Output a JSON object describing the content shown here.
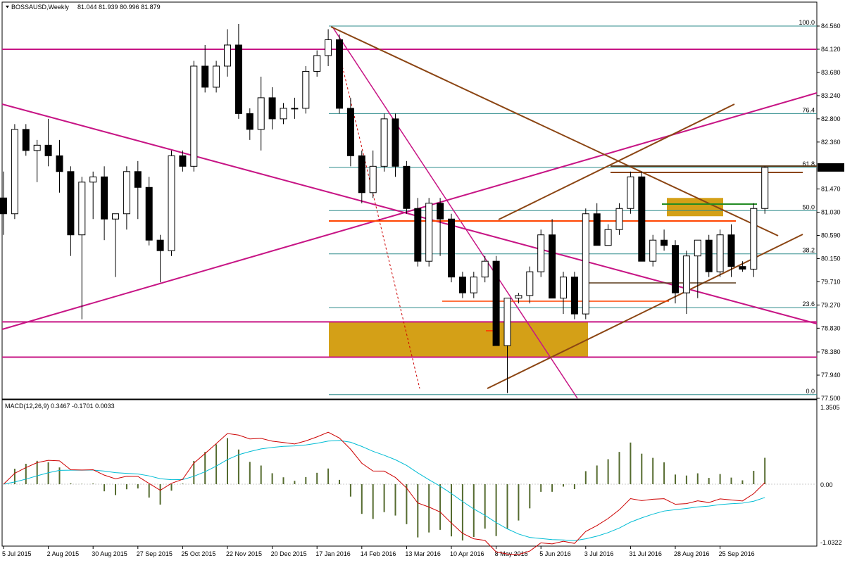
{
  "header": {
    "symbol": "BOSSAUSD,Weekly",
    "ohlc": "81.044 81.939 80.996 81.879"
  },
  "macd": {
    "label": "MACD(12,26,9) 0.3467 -0.1701 0.0033",
    "axis_top": "1.3505",
    "axis_zero": "0.00",
    "axis_bottom": "-1.0322"
  },
  "colors": {
    "bull_body": "#ffffff",
    "bear_body": "#000000",
    "magenta": "#c71585",
    "brown": "#8b4513",
    "fib": "#2e8b8b",
    "orange": "#ff4500",
    "green": "#228b22",
    "zone": "#d4a017",
    "hist": "#556b2f",
    "macd_signal": "#00bcd4",
    "macd_line": "#cc0000",
    "price_tag_bg": "#000000"
  },
  "chart_data": {
    "type": "candlestick",
    "price_axis": {
      "min": 77.5,
      "max": 84.56,
      "ticks": [
        "84.560",
        "84.120",
        "83.680",
        "83.240",
        "82.800",
        "82.360",
        "81.470",
        "81.030",
        "80.590",
        "80.150",
        "79.710",
        "79.270",
        "78.830",
        "78.380",
        "77.940",
        "77.500"
      ]
    },
    "last_price": "81.879",
    "x_labels": [
      "5 Jul 2015",
      "2 Aug 2015",
      "30 Aug 2015",
      "27 Sep 2015",
      "25 Oct 2015",
      "22 Nov 2015",
      "20 Dec 2015",
      "17 Jan 2016",
      "14 Feb 2016",
      "13 Mar 2016",
      "10 Apr 2016",
      "8 May 2016",
      "5 Jun 2016",
      "3 Jul 2016",
      "31 Jul 2016",
      "28 Aug 2016",
      "25 Sep 2016"
    ],
    "fib_levels": [
      {
        "label": "100.0",
        "price": 84.56
      },
      {
        "label": "76.4",
        "price": 82.9
      },
      {
        "label": "61.8",
        "price": 81.88
      },
      {
        "label": "50.0",
        "price": 81.06
      },
      {
        "label": "38.2",
        "price": 80.24
      },
      {
        "label": "23.6",
        "price": 79.22
      },
      {
        "label": "0.0",
        "price": 77.57
      }
    ],
    "horizontal_levels": [
      84.12,
      78.95,
      78.28
    ],
    "candles": [
      [
        81.3,
        81.8,
        80.6,
        81.0
      ],
      [
        81.0,
        82.7,
        80.9,
        82.6
      ],
      [
        82.6,
        82.7,
        82.1,
        82.2
      ],
      [
        82.2,
        82.4,
        81.6,
        82.3
      ],
      [
        82.3,
        82.8,
        81.9,
        82.1
      ],
      [
        82.1,
        82.4,
        81.4,
        81.8
      ],
      [
        81.8,
        81.9,
        80.2,
        80.6
      ],
      [
        80.6,
        81.7,
        79.0,
        81.6
      ],
      [
        81.6,
        81.8,
        80.9,
        81.7
      ],
      [
        81.7,
        81.9,
        80.5,
        80.9
      ],
      [
        80.9,
        81.0,
        79.8,
        81.0
      ],
      [
        81.0,
        81.9,
        80.7,
        81.8
      ],
      [
        81.8,
        82.0,
        80.9,
        81.5
      ],
      [
        81.5,
        81.7,
        80.4,
        80.5
      ],
      [
        80.5,
        80.6,
        79.7,
        80.3
      ],
      [
        80.3,
        82.2,
        80.2,
        82.1
      ],
      [
        82.1,
        82.2,
        81.8,
        81.9
      ],
      [
        81.9,
        83.9,
        81.8,
        83.8
      ],
      [
        83.8,
        84.2,
        83.3,
        83.4
      ],
      [
        83.4,
        83.9,
        83.3,
        83.8
      ],
      [
        83.8,
        84.5,
        83.6,
        84.2
      ],
      [
        84.2,
        84.6,
        82.8,
        82.9
      ],
      [
        82.9,
        83.0,
        82.4,
        82.6
      ],
      [
        82.6,
        83.6,
        82.2,
        83.2
      ],
      [
        83.2,
        83.4,
        82.6,
        82.8
      ],
      [
        82.8,
        83.1,
        82.7,
        83.0
      ],
      [
        83.0,
        83.2,
        82.8,
        83.0
      ],
      [
        83.0,
        83.8,
        82.9,
        83.7
      ],
      [
        83.7,
        84.1,
        83.6,
        84.0
      ],
      [
        84.0,
        84.5,
        83.8,
        84.3
      ],
      [
        84.3,
        84.4,
        82.9,
        83.0
      ],
      [
        83.0,
        83.2,
        81.9,
        82.1
      ],
      [
        82.1,
        82.2,
        81.2,
        81.4
      ],
      [
        81.4,
        82.2,
        81.3,
        81.9
      ],
      [
        81.9,
        82.9,
        81.8,
        82.8
      ],
      [
        82.8,
        82.9,
        81.7,
        81.9
      ],
      [
        81.9,
        82.0,
        81.0,
        81.1
      ],
      [
        81.1,
        81.3,
        80.0,
        80.1
      ],
      [
        80.1,
        81.3,
        80.0,
        81.2
      ],
      [
        81.2,
        81.3,
        80.2,
        80.9
      ],
      [
        80.9,
        81.0,
        79.7,
        79.8
      ],
      [
        79.8,
        79.9,
        79.4,
        79.5
      ],
      [
        79.5,
        79.9,
        79.4,
        79.8
      ],
      [
        79.8,
        80.2,
        79.7,
        80.1
      ],
      [
        80.1,
        80.2,
        78.5,
        78.5
      ],
      [
        78.5,
        79.4,
        77.6,
        79.4
      ],
      [
        79.4,
        79.5,
        79.3,
        79.45
      ],
      [
        79.45,
        80.0,
        79.3,
        79.9
      ],
      [
        79.9,
        80.7,
        79.8,
        80.6
      ],
      [
        80.6,
        80.9,
        79.4,
        79.4
      ],
      [
        79.4,
        79.9,
        79.1,
        79.8
      ],
      [
        79.8,
        79.9,
        79.0,
        79.1
      ],
      [
        79.1,
        81.1,
        79.0,
        81.0
      ],
      [
        81.0,
        81.2,
        80.4,
        80.4
      ],
      [
        80.4,
        80.8,
        80.4,
        80.7
      ],
      [
        80.7,
        81.2,
        80.6,
        81.1
      ],
      [
        81.1,
        81.8,
        81.0,
        81.7
      ],
      [
        81.7,
        81.8,
        80.1,
        80.1
      ],
      [
        80.1,
        80.6,
        80.0,
        80.5
      ],
      [
        80.5,
        80.7,
        80.3,
        80.4
      ],
      [
        80.4,
        80.5,
        79.3,
        79.5
      ],
      [
        79.5,
        80.3,
        79.1,
        80.2
      ],
      [
        80.2,
        80.5,
        79.4,
        80.5
      ],
      [
        80.5,
        80.6,
        79.8,
        79.9
      ],
      [
        79.9,
        80.7,
        79.8,
        80.6
      ],
      [
        80.6,
        80.8,
        79.8,
        80.0
      ],
      [
        80.0,
        80.1,
        79.9,
        79.95
      ],
      [
        79.95,
        81.2,
        79.8,
        81.1
      ],
      [
        81.1,
        81.9,
        81.0,
        81.879
      ]
    ]
  }
}
